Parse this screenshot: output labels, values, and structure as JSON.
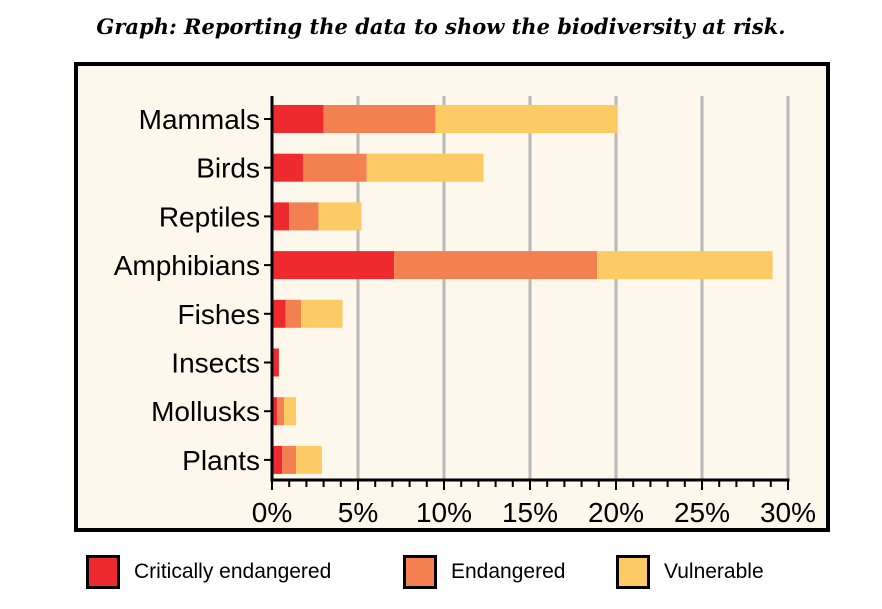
{
  "chart_data": {
    "type": "bar",
    "orientation": "horizontal",
    "stacked": true,
    "title": "Graph: Reporting the data to show the biodiversity at risk.",
    "categories": [
      "Mammals",
      "Birds",
      "Reptiles",
      "Amphibians",
      "Fishes",
      "Insects",
      "Mollusks",
      "Plants"
    ],
    "series": [
      {
        "name": "Critically endangered",
        "color": "#ee2a2e",
        "values": [
          3.0,
          1.8,
          1.0,
          7.1,
          0.8,
          0.4,
          0.3,
          0.6
        ]
      },
      {
        "name": "Endangered",
        "color": "#f38050",
        "values": [
          6.5,
          3.7,
          1.7,
          11.8,
          0.9,
          0.0,
          0.4,
          0.8
        ]
      },
      {
        "name": "Vulnerable",
        "color": "#fdcb63",
        "values": [
          10.6,
          6.8,
          2.5,
          10.2,
          2.4,
          0.0,
          0.7,
          1.5
        ]
      }
    ],
    "xlim": [
      0,
      30
    ],
    "xticks": [
      0,
      5,
      10,
      15,
      20,
      25,
      30
    ],
    "xtick_labels": [
      "0%",
      "5%",
      "10%",
      "15%",
      "20%",
      "25%",
      "30%"
    ],
    "xlabel": "",
    "ylabel": "",
    "grid": "vertical",
    "legend_position": "bottom"
  }
}
